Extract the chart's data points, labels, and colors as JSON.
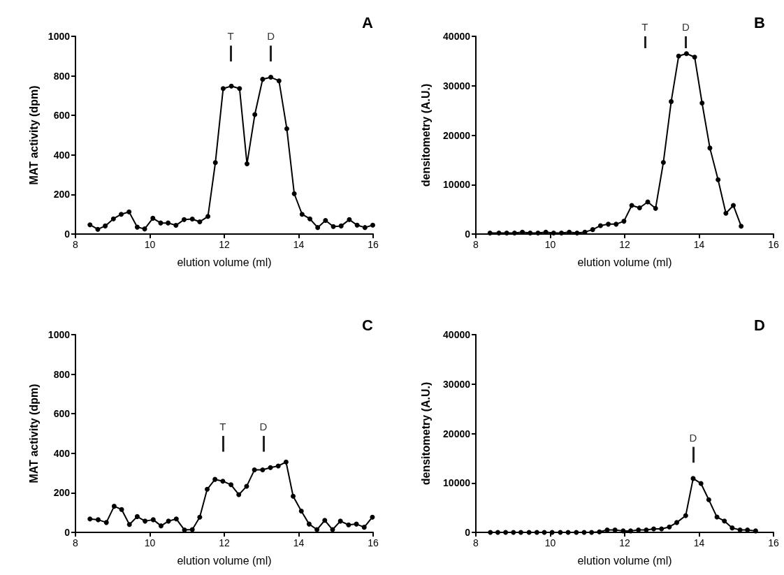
{
  "chart_data": [
    {
      "type": "line",
      "title": "A",
      "xlabel": "elution volume (ml)",
      "ylabel": "MAT activity (dpm)",
      "color": "#000000",
      "marker": "circle",
      "xlim": [
        8,
        16
      ],
      "xticks": [
        8,
        10,
        12,
        14,
        16
      ],
      "ylim": [
        0,
        1000
      ],
      "yticks": [
        0,
        200,
        400,
        600,
        800,
        1000
      ],
      "x": [
        8.39,
        8.6,
        8.8,
        9.02,
        9.23,
        9.44,
        9.66,
        9.86,
        10.08,
        10.29,
        10.49,
        10.7,
        10.92,
        11.14,
        11.34,
        11.56,
        11.76,
        11.97,
        12.19,
        12.41,
        12.61,
        12.82,
        13.03,
        13.25,
        13.47,
        13.68,
        13.88,
        14.09,
        14.3,
        14.51,
        14.72,
        14.93,
        15.14,
        15.36,
        15.57,
        15.78,
        15.99
      ],
      "values": [
        47,
        24,
        41,
        77,
        100,
        112,
        35,
        26,
        80,
        56,
        56,
        44,
        73,
        76,
        62,
        89,
        361,
        736,
        748,
        736,
        355,
        604,
        783,
        793,
        775,
        533,
        204,
        100,
        77,
        33,
        69,
        38,
        41,
        73,
        45,
        33,
        45
      ],
      "ref_lines": [
        {
          "axis": "x",
          "value": 12.17,
          "label": "T"
        },
        {
          "axis": "x",
          "value": 13.25,
          "label": "D"
        }
      ]
    },
    {
      "type": "line",
      "title": "B",
      "xlabel": "elution volume (ml)",
      "ylabel": "densitometry (A.U.)",
      "color": "#000000",
      "marker": "circle",
      "xlim": [
        8,
        16
      ],
      "xticks": [
        8,
        10,
        12,
        14,
        16
      ],
      "ylim": [
        0,
        40000
      ],
      "yticks": [
        0,
        10000,
        20000,
        30000,
        40000
      ],
      "x": [
        8.38,
        8.62,
        8.83,
        9.04,
        9.25,
        9.46,
        9.67,
        9.88,
        10.09,
        10.3,
        10.51,
        10.72,
        10.93,
        11.14,
        11.35,
        11.56,
        11.77,
        11.98,
        12.19,
        12.4,
        12.62,
        12.83,
        13.04,
        13.25,
        13.45,
        13.66,
        13.88,
        14.08,
        14.29,
        14.51,
        14.72,
        14.92,
        15.13
      ],
      "values": [
        200,
        200,
        200,
        200,
        400,
        200,
        200,
        400,
        200,
        200,
        400,
        200,
        400,
        900,
        1700,
        2000,
        2000,
        2600,
        5800,
        5300,
        6500,
        5200,
        14500,
        26800,
        36000,
        36500,
        35800,
        26500,
        17400,
        11000,
        4200,
        5800,
        1600
      ],
      "ref_lines": [
        {
          "axis": "x",
          "value": 12.54,
          "label": "T"
        },
        {
          "axis": "x",
          "value": 13.64,
          "label": "D"
        }
      ]
    },
    {
      "type": "line",
      "title": "C",
      "xlabel": "elution volume (ml)",
      "ylabel": "MAT activity (dpm)",
      "color": "#000000",
      "marker": "circle",
      "xlim": [
        8,
        16
      ],
      "xticks": [
        8,
        10,
        12,
        14,
        16
      ],
      "ylim": [
        0,
        1000
      ],
      "yticks": [
        0,
        200,
        400,
        600,
        800,
        1000
      ],
      "x": [
        8.39,
        8.61,
        8.83,
        9.04,
        9.24,
        9.45,
        9.66,
        9.87,
        10.09,
        10.3,
        10.5,
        10.71,
        10.93,
        11.14,
        11.34,
        11.54,
        11.75,
        11.96,
        12.18,
        12.39,
        12.6,
        12.81,
        13.03,
        13.24,
        13.45,
        13.66,
        13.85,
        14.07,
        14.28,
        14.49,
        14.7,
        14.91,
        15.12,
        15.34,
        15.55,
        15.76,
        15.98
      ],
      "values": [
        68,
        64,
        50,
        132,
        116,
        40,
        80,
        57,
        64,
        33,
        57,
        68,
        12,
        14,
        77,
        218,
        268,
        259,
        241,
        191,
        233,
        316,
        316,
        328,
        336,
        356,
        183,
        108,
        42,
        14,
        61,
        14,
        57,
        38,
        42,
        26,
        77
      ],
      "ref_lines": [
        {
          "axis": "x",
          "value": 11.96,
          "label": "T"
        },
        {
          "axis": "x",
          "value": 13.05,
          "label": "D"
        }
      ]
    },
    {
      "type": "line",
      "title": "D",
      "xlabel": "elution volume (ml)",
      "ylabel": "densitometry (A.U.)",
      "color": "#000000",
      "marker": "circle",
      "xlim": [
        8,
        16
      ],
      "xticks": [
        8,
        10,
        12,
        14,
        16
      ],
      "ylim": [
        0,
        40000
      ],
      "yticks": [
        0,
        10000,
        20000,
        30000,
        40000
      ],
      "x": [
        8.39,
        8.59,
        8.8,
        9.01,
        9.21,
        9.43,
        9.64,
        9.84,
        10.05,
        10.27,
        10.48,
        10.7,
        10.91,
        11.11,
        11.32,
        11.53,
        11.74,
        11.96,
        12.16,
        12.37,
        12.58,
        12.78,
        12.99,
        13.2,
        13.4,
        13.64,
        13.84,
        14.05,
        14.26,
        14.48,
        14.68,
        14.89,
        15.1,
        15.3,
        15.52
      ],
      "values": [
        0,
        0,
        0,
        0,
        0,
        0,
        0,
        0,
        0,
        0,
        0,
        0,
        0,
        0,
        100,
        500,
        500,
        300,
        300,
        500,
        500,
        700,
        700,
        1100,
        2000,
        3400,
        10900,
        9900,
        6600,
        3100,
        2300,
        900,
        500,
        500,
        300
      ],
      "ref_lines": [
        {
          "axis": "x",
          "value": 13.84,
          "label": "D"
        }
      ]
    }
  ]
}
